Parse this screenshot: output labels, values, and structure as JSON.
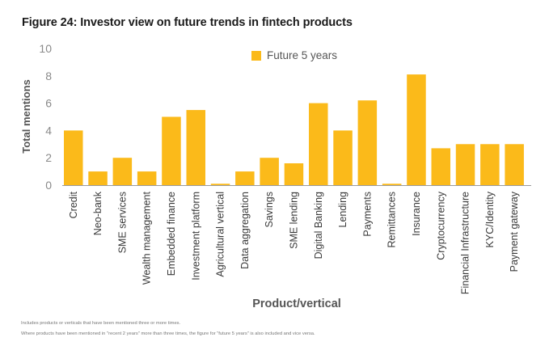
{
  "figure": {
    "title": "Figure 24: Investor view on future trends in fintech products",
    "notes": [
      "Includes products  or verticals that have been mentioned three or more times.",
      "Where products have been mentioned in \"recent 2 years\" more than three times, the figure for \"future 5 years\" is also included and vice versa."
    ]
  },
  "chart_data": {
    "type": "bar",
    "title": "Figure 24: Investor view on future trends in fintech products",
    "xlabel": "Product/vertical",
    "ylabel": "Total mentions",
    "ylim": [
      0,
      10
    ],
    "yticks": [
      0,
      2,
      4,
      6,
      8,
      10
    ],
    "grid": false,
    "legend_position": "top-center",
    "bar_color": "#FBBA1A",
    "categories": [
      "Credit",
      "Neo-bank",
      "SME services",
      "Wealth management",
      "Embedded finance",
      "Investment platform",
      "Agricultural vertical",
      "Data aggregation",
      "Savings",
      "SME lending",
      "Digital Banking",
      "Lending",
      "Payments",
      "Remittances",
      "Insurance",
      "Cryptocurrency",
      "Financial Infrastructure",
      "KYC/Identity",
      "Payment gateway"
    ],
    "series": [
      {
        "name": "Future 5 years",
        "values": [
          4,
          1,
          2,
          1,
          5,
          5.5,
          0.1,
          1,
          2,
          1.6,
          6,
          4,
          6.2,
          0.1,
          8.1,
          2.7,
          3,
          3,
          3
        ]
      }
    ]
  }
}
